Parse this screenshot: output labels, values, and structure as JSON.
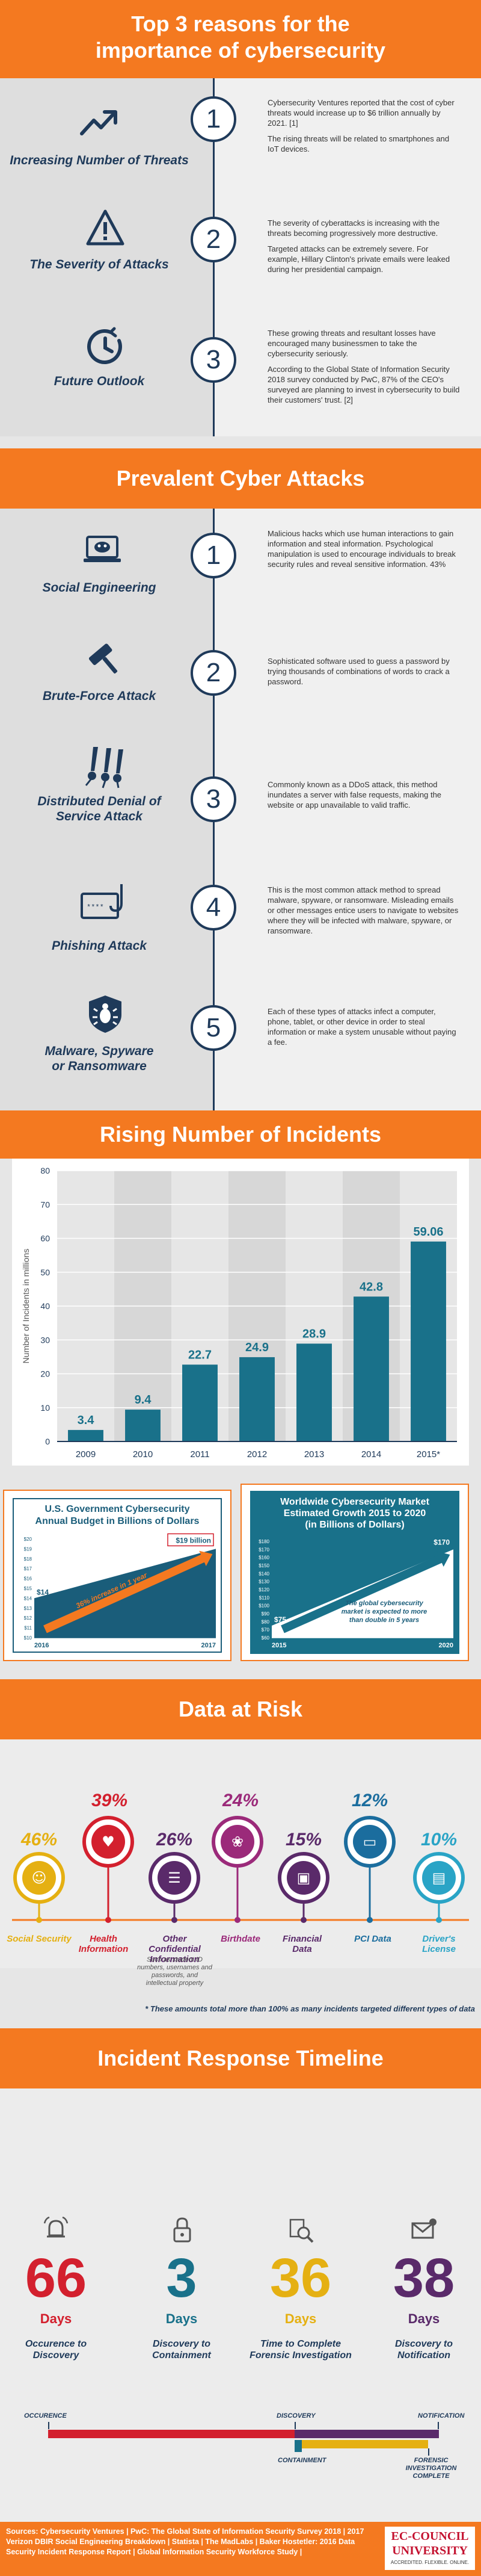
{
  "colors": {
    "orange": "#f47920",
    "navy": "#1f3a5a",
    "teal": "#19718a",
    "red": "#d3202e",
    "yellow": "#e5b012",
    "purple": "#5a2a6a"
  },
  "header": {
    "title_line1": "Top 3 reasons for the",
    "title_line2": "importance of cybersecurity"
  },
  "reasons": [
    {
      "num": "1",
      "label": "Increasing Number of Threats",
      "icon": "trend-up-icon",
      "text": [
        "Cybersecurity Ventures reported that the cost of cyber threats would increase up to $6 trillion annually by 2021. [1]",
        "The rising threats will be related to smartphones and IoT devices."
      ]
    },
    {
      "num": "2",
      "label": "The Severity of Attacks",
      "icon": "warning-icon",
      "text": [
        "The severity of cyberattacks is increasing with the threats becoming progressively more destructive.",
        "Targeted attacks can be extremely severe. For example, Hillary Clinton's private emails were leaked during her presidential campaign."
      ]
    },
    {
      "num": "3",
      "label": "Future Outlook",
      "icon": "clock-icon",
      "text": [
        "These growing threats and resultant losses have encouraged many businessmen to take the cybersecurity seriously.",
        "According to the Global State of Information Security 2018 survey conducted by PwC, 87% of the CEO's surveyed are planning to invest in cybersecurity to build their customers' trust. [2]"
      ]
    }
  ],
  "attacks_header": "Prevalent Cyber Attacks",
  "attacks": [
    {
      "num": "1",
      "label_line1": "Social Engineering",
      "label_line2": "",
      "icon": "laptop-mask-icon",
      "text": "Malicious hacks which use human interactions to gain information and steal information. Psychological manipulation is used to encourage individuals to break security rules and reveal sensitive information. 43%"
    },
    {
      "num": "2",
      "label_line1": "Brute-Force Attack",
      "label_line2": "",
      "icon": "hammer-icon",
      "text": "Sophisticated software used to guess a password by trying thousands of combinations of words to crack a password."
    },
    {
      "num": "3",
      "label_line1": "Distributed Denial of",
      "label_line2": "Service Attack",
      "icon": "missiles-icon",
      "text": "Commonly known as a DDoS attack, this method inundates a server with false requests, making the website or app unavailable to valid traffic."
    },
    {
      "num": "4",
      "label_line1": "Phishing Attack",
      "label_line2": "",
      "icon": "fishhook-icon",
      "text": "This is the most common attack method to spread malware, spyware, or ransomware. Misleading emails or other messages entice users to navigate to websites where they will be infected with malware, spyware, or ransomware."
    },
    {
      "num": "5",
      "label_line1": "Malware, Spyware",
      "label_line2": "or Ransomware",
      "icon": "bug-shield-icon",
      "text": "Each of these types of attacks infect a computer, phone, tablet, or other device in order to steal information or make a system unusable without paying a fee."
    }
  ],
  "incidents_header": "Rising Number of Incidents",
  "chart_data": {
    "type": "bar",
    "categories": [
      "2009",
      "2010",
      "2011",
      "2012",
      "2013",
      "2014",
      "2015*"
    ],
    "values": [
      3.4,
      9.4,
      22.7,
      24.9,
      28.9,
      42.8,
      59.06
    ],
    "value_labels": [
      "3.4",
      "9.4",
      "22.7",
      "24.9",
      "28.9",
      "42.8",
      "59.06"
    ],
    "ylabel": "Number of Incidents in millions",
    "ylim": [
      0,
      80
    ],
    "yticks": [
      "0",
      "10",
      "20",
      "30",
      "40",
      "50",
      "60",
      "70",
      "80"
    ],
    "grid": true
  },
  "budget_panel": {
    "title_line1": "U.S. Government Cybersecurity",
    "title_line2": "Annual Budget in Billions of Dollars",
    "yticks": [
      "$10",
      "$11",
      "$12",
      "$13",
      "$14",
      "$15",
      "$16",
      "$17",
      "$18",
      "$19",
      "$20"
    ],
    "start_label": "$14",
    "end_label": "$19 billion",
    "arrow_text": "36% increase in 1 year",
    "x_start": "2016",
    "x_end": "2017",
    "chart_data": {
      "type": "area",
      "x": [
        "2016",
        "2017"
      ],
      "values": [
        14,
        19
      ],
      "ylim": [
        10,
        20
      ]
    }
  },
  "market_panel": {
    "title_line1": "Worldwide Cybersecurity Market",
    "title_line2": "Estimated Growth 2015 to 2020",
    "title_line3": "(in Billions of Dollars)",
    "yticks": [
      "$60",
      "$70",
      "$80",
      "$90",
      "$100",
      "$110",
      "$120",
      "$130",
      "$140",
      "$150",
      "$160",
      "$170",
      "$180"
    ],
    "start_label": "$75",
    "end_label": "$170",
    "arrow_text": "The global cybersecurity market is expected to more than double in 5 years",
    "x_start": "2015",
    "x_end": "2020",
    "chart_data": {
      "type": "area",
      "x": [
        "2015",
        "2020"
      ],
      "values": [
        75,
        170
      ],
      "ylim": [
        60,
        180
      ]
    }
  },
  "risk_header": "Data at Risk",
  "risk": [
    {
      "pct": "46%",
      "label": "Social Security",
      "icon": "person-icon",
      "color": "#e5b012"
    },
    {
      "pct": "39%",
      "label": "Health Information",
      "icon": "heart-icon",
      "color": "#d3202e"
    },
    {
      "pct": "26%",
      "label": "Other Confidential Information",
      "icon": "document-icon",
      "color": "#5a2a6a",
      "note": "Such as student ID numbers, usernames and passwords, and intellectual property"
    },
    {
      "pct": "24%",
      "label": "Birthdate",
      "icon": "cake-icon",
      "color": "#9b2a7a"
    },
    {
      "pct": "15%",
      "label": "Financial Data",
      "icon": "safe-icon",
      "color": "#5a2a6a"
    },
    {
      "pct": "12%",
      "label": "PCI Data",
      "icon": "card-icon",
      "color": "#1b6d9e"
    },
    {
      "pct": "10%",
      "label": "Driver's License",
      "icon": "id-card-icon",
      "color": "#2aa4c6"
    }
  ],
  "risk_footnote": "* These amounts total more than 100% as many incidents targeted different types of data",
  "timeline_header": "Incident Response Timeline",
  "timeline": [
    {
      "num": "66",
      "unit": "Days",
      "label": "Occurence to Discovery",
      "icon": "alarm-icon",
      "color": "#d3202e"
    },
    {
      "num": "3",
      "unit": "Days",
      "label": "Discovery to Containment",
      "icon": "lock-icon",
      "color": "#19718a"
    },
    {
      "num": "36",
      "unit": "Days",
      "label": "Time to Complete Forensic Investigation",
      "icon": "magnifier-icon",
      "color": "#e5b012"
    },
    {
      "num": "38",
      "unit": "Days",
      "label": "Discovery to Notification",
      "icon": "envelope-icon",
      "color": "#5a2a6a"
    }
  ],
  "timeline_markers": {
    "occurence": "OCCURENCE",
    "discovery": "DISCOVERY",
    "notification": "NOTIFICATION",
    "containment": "CONTAINMENT",
    "forensic": "FORENSIC INVESTIGATION COMPLETE"
  },
  "footer": {
    "sources": "Sources: Cybersecurity Ventures | PwC: The Global State of Information Security Survey 2018 | 2017 Verizon DBIR Social Engineering Breakdown | Statista | The MadLabs | Baker Hostetler: 2016 Data Security Incident Response Report | Global Information Security Workforce Study |",
    "logo_line1": "EC-COUNCIL",
    "logo_line2": "UNIVERSITY",
    "logo_line3": "ACCREDITED. FLEXIBLE. ONLINE."
  }
}
